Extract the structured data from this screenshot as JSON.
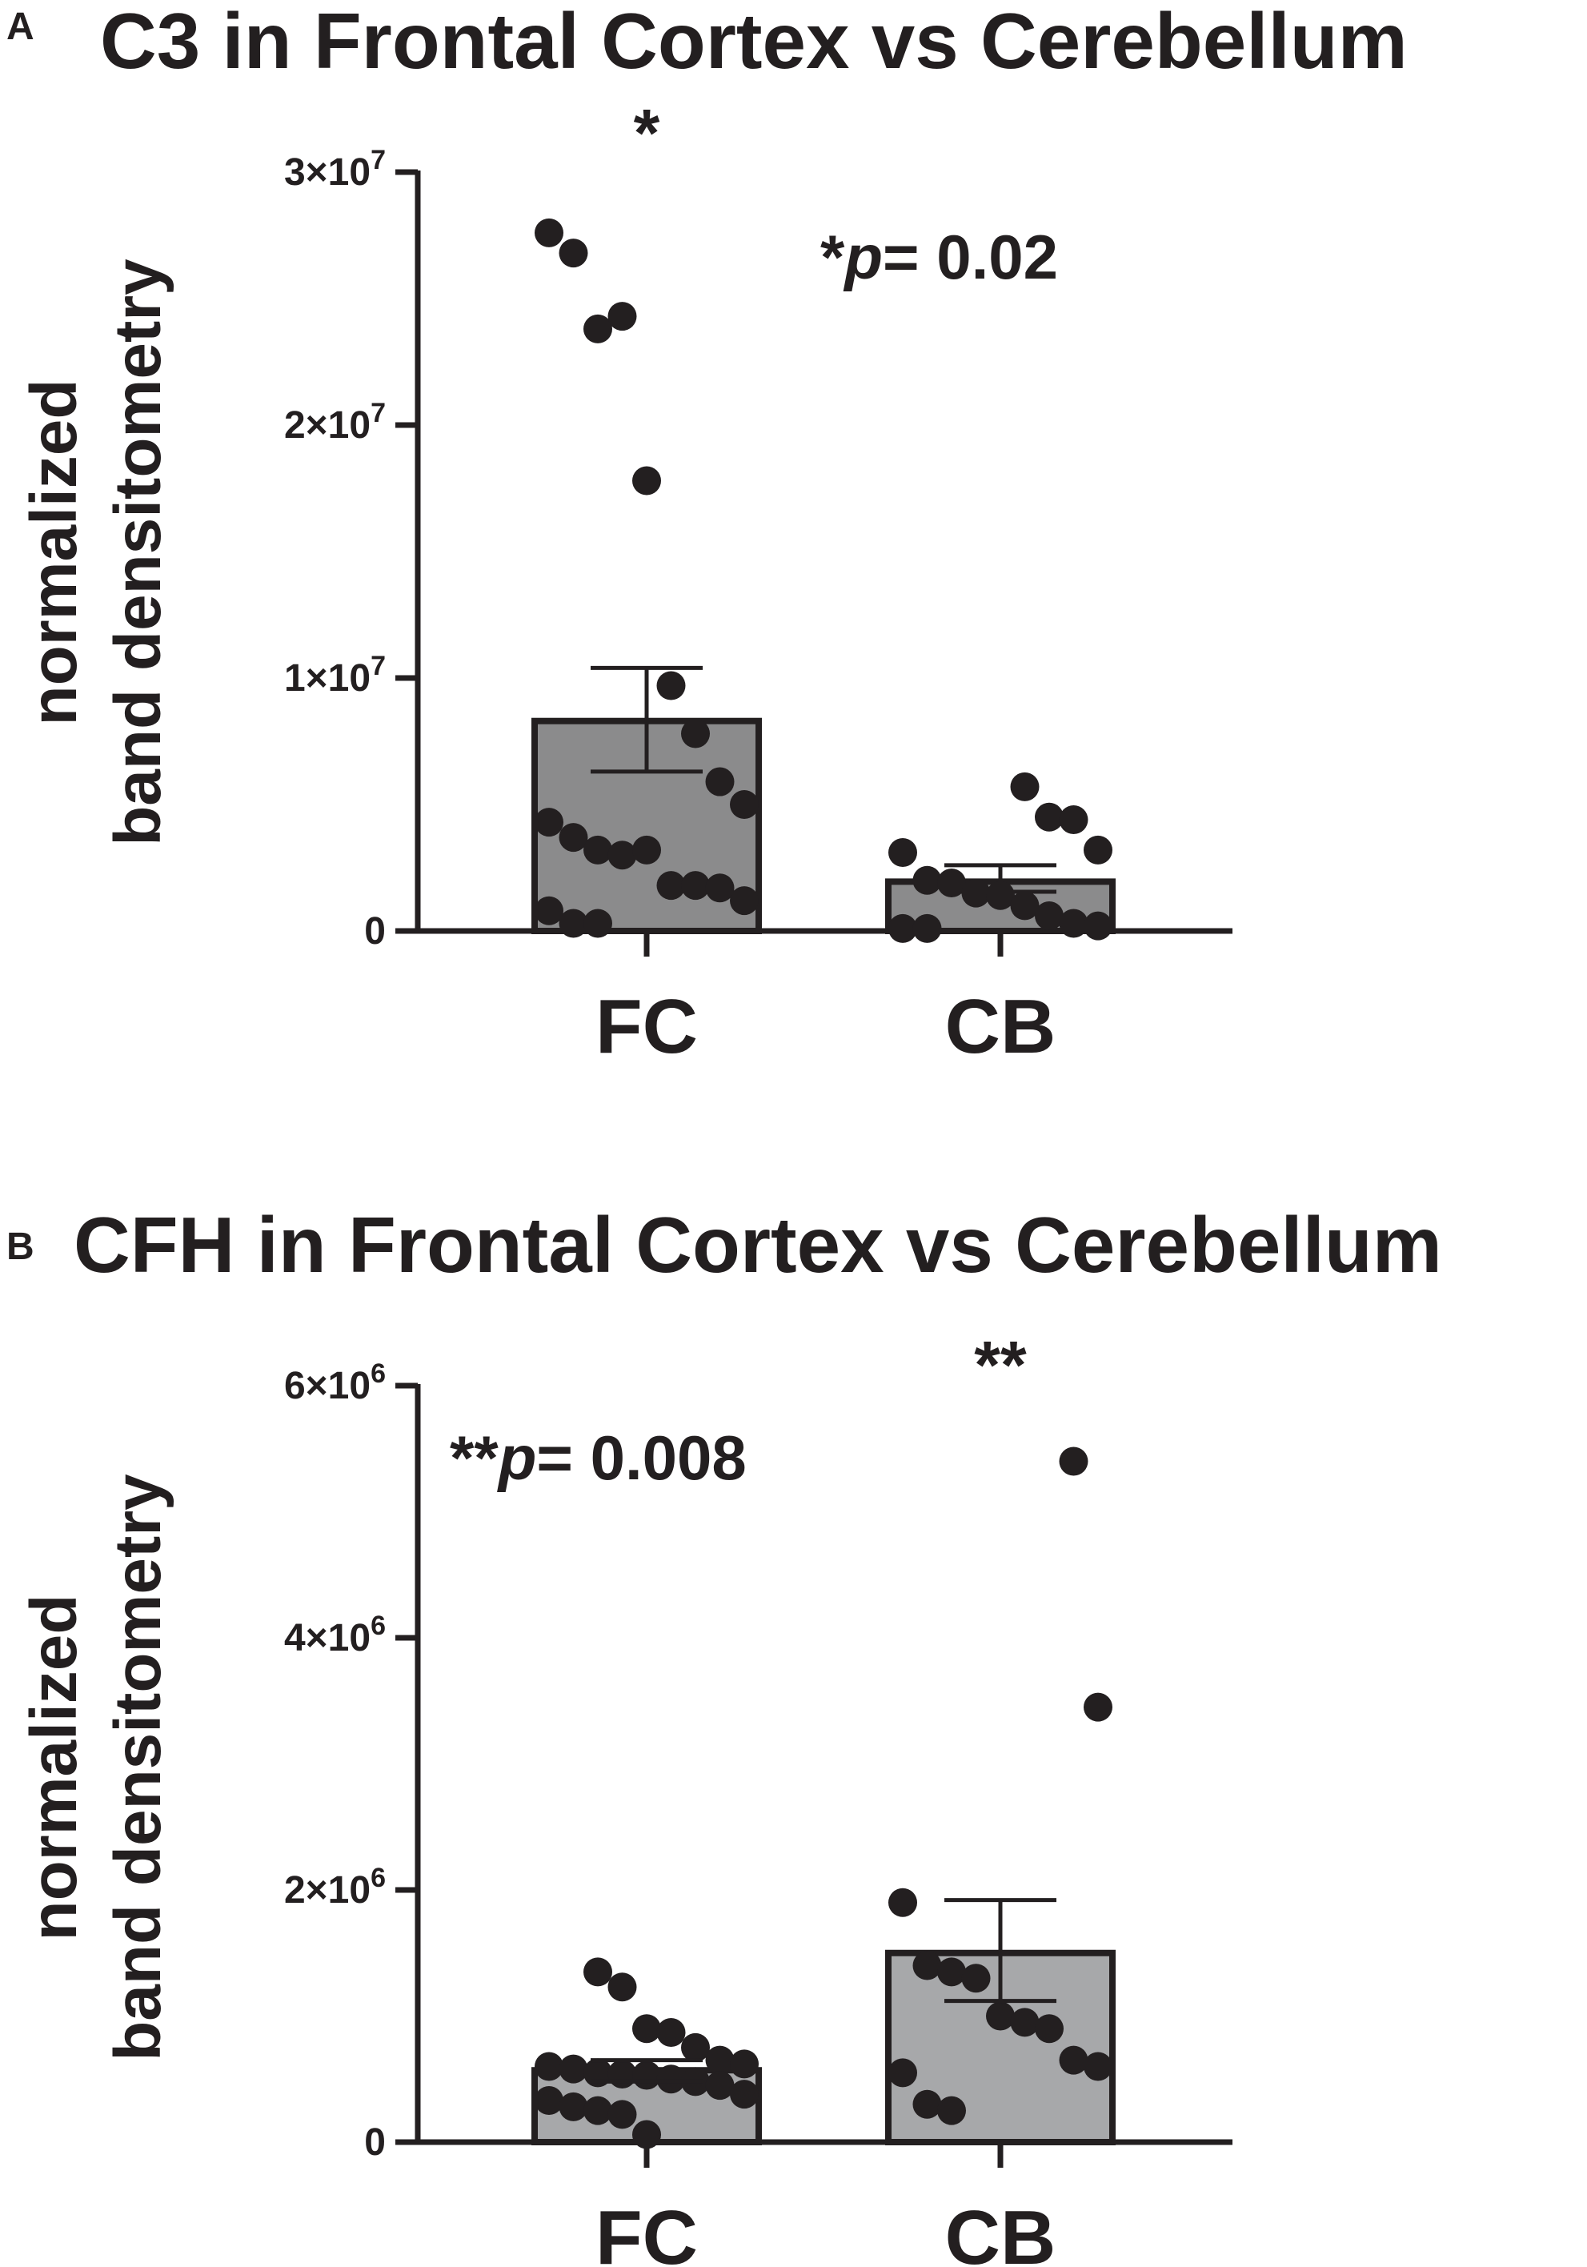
{
  "panels": [
    {
      "letter": "A",
      "chart_data": {
        "type": "bar",
        "title": "C3 in Frontal Cortex vs Cerebellum",
        "ylabel": [
          "normalized",
          "band densitometry"
        ],
        "xlabel": "",
        "categories": [
          "FC",
          "CB"
        ],
        "ylim": [
          0,
          30000000
        ],
        "yticks": [
          {
            "value": 0,
            "label": "0"
          },
          {
            "value": 10000000,
            "base": "1×10",
            "exp": "7"
          },
          {
            "value": 20000000,
            "base": "2×10",
            "exp": "7"
          },
          {
            "value": 30000000,
            "base": "3×10",
            "exp": "7"
          }
        ],
        "series": [
          {
            "values": [
              8300000,
              1950000
            ],
            "sem_low": [
              6300000,
              1550000
            ],
            "sem_high": [
              10400000,
              2600000
            ],
            "points": [
              [
                27600000,
                26800000,
                23800000,
                24300000,
                17800000,
                9700000,
                7800000,
                5900000,
                5000000,
                4300000,
                3700000,
                3200000,
                3000000,
                3200000,
                1800000,
                1800000,
                1700000,
                1200000,
                800000,
                300000,
                300000
              ],
              [
                5700000,
                4500000,
                4400000,
                3200000,
                3100000,
                2000000,
                1900000,
                1500000,
                1400000,
                1000000,
                600000,
                300000,
                200000,
                100000,
                100000
              ]
            ]
          }
        ],
        "significance": {
          "star": "*",
          "star_category": "FC",
          "p_prefix": "*",
          "p_italic": "p",
          "p_value": "= 0.02"
        },
        "colors": {
          "bar_fill": "#8b8b8c",
          "axis": "#231f20",
          "points": "#231f20"
        }
      }
    },
    {
      "letter": "B",
      "chart_data": {
        "type": "bar",
        "title": "CFH in Frontal Cortex vs Cerebellum",
        "ylabel": [
          "normalized",
          "band densitometry"
        ],
        "xlabel": "",
        "categories": [
          "FC",
          "CB"
        ],
        "ylim": [
          0,
          6000000
        ],
        "yticks": [
          {
            "value": 0,
            "label": "0"
          },
          {
            "value": 2000000,
            "base": "2×10",
            "exp": "6"
          },
          {
            "value": 4000000,
            "base": "4×10",
            "exp": "6"
          },
          {
            "value": 6000000,
            "base": "6×10",
            "exp": "6"
          }
        ],
        "series": [
          {
            "values": [
              570000,
              1500000
            ],
            "sem_low": [
              480000,
              1120000
            ],
            "sem_high": [
              650000,
              1920000
            ],
            "points": [
              [
                1350000,
                1230000,
                900000,
                870000,
                750000,
                650000,
                620000,
                600000,
                580000,
                550000,
                540000,
                530000,
                500000,
                480000,
                450000,
                380000,
                330000,
                280000,
                250000,
                220000,
                60000
              ],
              [
                5400000,
                3450000,
                1900000,
                1400000,
                1350000,
                1300000,
                1000000,
                950000,
                900000,
                650000,
                600000,
                550000,
                300000,
                250000
              ]
            ]
          }
        ],
        "significance": {
          "star": "**",
          "star_category": "CB",
          "p_prefix": "**",
          "p_italic": "p",
          "p_value": "= 0.008"
        },
        "colors": {
          "bar_fill": "#a7a8aa",
          "axis": "#231f20",
          "points": "#231f20"
        }
      }
    }
  ]
}
